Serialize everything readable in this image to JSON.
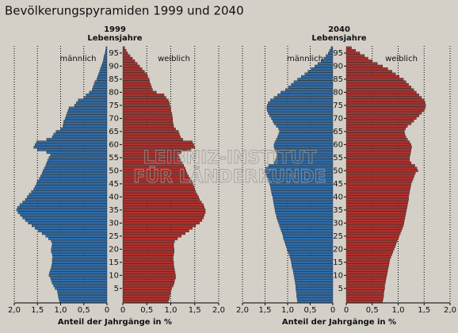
{
  "title": "Bevölkerungspyramiden 1999 und 2040",
  "watermark": [
    "LEIBNIZ-INSTITUT",
    "FÜR LÄNDERKUNDE"
  ],
  "chart_data": [
    {
      "type": "pyramid",
      "title": "1999",
      "subtitle": "Lebensjahre",
      "xlabel": "Anteil der Jahrgänge in %",
      "y": [
        0,
        1,
        2,
        3,
        4,
        5,
        6,
        7,
        8,
        9,
        10,
        11,
        12,
        13,
        14,
        15,
        16,
        17,
        18,
        19,
        20,
        21,
        22,
        23,
        24,
        25,
        26,
        27,
        28,
        29,
        30,
        31,
        32,
        33,
        34,
        35,
        36,
        37,
        38,
        39,
        40,
        41,
        42,
        43,
        44,
        45,
        46,
        47,
        48,
        49,
        50,
        51,
        52,
        53,
        54,
        55,
        56,
        57,
        58,
        59,
        60,
        61,
        62,
        63,
        64,
        65,
        66,
        67,
        68,
        69,
        70,
        71,
        72,
        73,
        74,
        75,
        76,
        77,
        78,
        79,
        80,
        81,
        82,
        83,
        84,
        85,
        86,
        87,
        88,
        89,
        90,
        91,
        92,
        93,
        94,
        95,
        96,
        97
      ],
      "ylim": [
        0,
        97
      ],
      "yticks": [
        5,
        10,
        15,
        20,
        25,
        30,
        35,
        40,
        45,
        50,
        55,
        60,
        65,
        70,
        75,
        80,
        85,
        90,
        95
      ],
      "xlim": [
        0,
        2
      ],
      "xticks": [
        0,
        {
          "value": 0.5,
          "label": "0,5"
        },
        {
          "value": 1,
          "label": "1,0"
        },
        {
          "value": 1.5,
          "label": "1,5"
        },
        {
          "value": 2,
          "label": "2,0"
        }
      ],
      "grid": true,
      "series": [
        {
          "name": "männlich",
          "color": "#2f6ca8",
          "side": "left",
          "values": [
            1.02,
            1.04,
            1.05,
            1.06,
            1.07,
            1.12,
            1.15,
            1.18,
            1.2,
            1.22,
            1.25,
            1.24,
            1.22,
            1.2,
            1.19,
            1.18,
            1.18,
            1.17,
            1.18,
            1.2,
            1.2,
            1.19,
            1.18,
            1.2,
            1.26,
            1.32,
            1.4,
            1.48,
            1.55,
            1.62,
            1.7,
            1.76,
            1.82,
            1.87,
            1.92,
            1.95,
            1.93,
            1.88,
            1.82,
            1.76,
            1.72,
            1.68,
            1.63,
            1.58,
            1.55,
            1.52,
            1.5,
            1.46,
            1.43,
            1.4,
            1.38,
            1.35,
            1.32,
            1.3,
            1.28,
            1.25,
            1.22,
            1.3,
            1.5,
            1.58,
            1.55,
            1.52,
            1.3,
            1.18,
            1.15,
            1.1,
            1.0,
            0.95,
            0.94,
            0.93,
            0.9,
            0.88,
            0.86,
            0.84,
            0.82,
            0.7,
            0.66,
            0.62,
            0.5,
            0.45,
            0.38,
            0.32,
            0.3,
            0.28,
            0.26,
            0.22,
            0.2,
            0.18,
            0.16,
            0.14,
            0.12,
            0.1,
            0.08,
            0.07,
            0.06,
            0.04,
            0.03,
            0.02
          ]
        },
        {
          "name": "weiblich",
          "color": "#b0302c",
          "side": "right",
          "values": [
            0.95,
            0.97,
            0.98,
            0.99,
            1.0,
            1.02,
            1.05,
            1.07,
            1.08,
            1.1,
            1.1,
            1.09,
            1.08,
            1.07,
            1.06,
            1.06,
            1.05,
            1.05,
            1.06,
            1.07,
            1.07,
            1.06,
            1.06,
            1.08,
            1.14,
            1.22,
            1.3,
            1.38,
            1.45,
            1.52,
            1.6,
            1.65,
            1.68,
            1.7,
            1.72,
            1.72,
            1.7,
            1.68,
            1.64,
            1.6,
            1.58,
            1.55,
            1.52,
            1.5,
            1.48,
            1.46,
            1.44,
            1.4,
            1.37,
            1.34,
            1.32,
            1.3,
            1.27,
            1.24,
            1.2,
            1.18,
            1.16,
            1.22,
            1.42,
            1.5,
            1.48,
            1.45,
            1.25,
            1.2,
            1.18,
            1.16,
            1.1,
            1.06,
            1.05,
            1.04,
            1.04,
            1.03,
            1.02,
            1.0,
            1.0,
            0.98,
            0.97,
            0.95,
            0.9,
            0.86,
            0.7,
            0.62,
            0.6,
            0.58,
            0.56,
            0.55,
            0.52,
            0.5,
            0.45,
            0.4,
            0.35,
            0.3,
            0.25,
            0.2,
            0.15,
            0.1,
            0.07,
            0.04
          ]
        }
      ]
    },
    {
      "type": "pyramid",
      "title": "2040",
      "subtitle": "Lebensjahre",
      "xlabel": "Anteil der Jahrgänge in %",
      "y": [
        0,
        1,
        2,
        3,
        4,
        5,
        6,
        7,
        8,
        9,
        10,
        11,
        12,
        13,
        14,
        15,
        16,
        17,
        18,
        19,
        20,
        21,
        22,
        23,
        24,
        25,
        26,
        27,
        28,
        29,
        30,
        31,
        32,
        33,
        34,
        35,
        36,
        37,
        38,
        39,
        40,
        41,
        42,
        43,
        44,
        45,
        46,
        47,
        48,
        49,
        50,
        51,
        52,
        53,
        54,
        55,
        56,
        57,
        58,
        59,
        60,
        61,
        62,
        63,
        64,
        65,
        66,
        67,
        68,
        69,
        70,
        71,
        72,
        73,
        74,
        75,
        76,
        77,
        78,
        79,
        80,
        81,
        82,
        83,
        84,
        85,
        86,
        87,
        88,
        89,
        90,
        91,
        92,
        93,
        94,
        95,
        96,
        97
      ],
      "ylim": [
        0,
        97
      ],
      "yticks": [
        5,
        10,
        15,
        20,
        25,
        30,
        35,
        40,
        45,
        50,
        55,
        60,
        65,
        70,
        75,
        80,
        85,
        90,
        95
      ],
      "xlim": [
        0,
        2
      ],
      "xticks": [
        0,
        {
          "value": 0.5,
          "label": "0,5"
        },
        {
          "value": 1,
          "label": "1,0"
        },
        {
          "value": 1.5,
          "label": "1,5"
        },
        {
          "value": 2,
          "label": "2,0"
        }
      ],
      "grid": true,
      "series": [
        {
          "name": "männlich",
          "color": "#2f6ca8",
          "side": "left",
          "values": [
            0.78,
            0.79,
            0.8,
            0.8,
            0.81,
            0.82,
            0.82,
            0.83,
            0.84,
            0.85,
            0.86,
            0.87,
            0.88,
            0.9,
            0.91,
            0.92,
            0.93,
            0.95,
            0.97,
            0.99,
            1.01,
            1.03,
            1.05,
            1.07,
            1.09,
            1.1,
            1.12,
            1.14,
            1.16,
            1.18,
            1.2,
            1.22,
            1.24,
            1.25,
            1.27,
            1.28,
            1.29,
            1.3,
            1.31,
            1.32,
            1.33,
            1.35,
            1.36,
            1.37,
            1.38,
            1.4,
            1.42,
            1.44,
            1.46,
            1.48,
            1.5,
            1.48,
            1.42,
            1.3,
            1.27,
            1.25,
            1.24,
            1.25,
            1.28,
            1.3,
            1.3,
            1.28,
            1.25,
            1.22,
            1.2,
            1.18,
            1.2,
            1.25,
            1.3,
            1.33,
            1.36,
            1.4,
            1.43,
            1.45,
            1.46,
            1.45,
            1.43,
            1.38,
            1.3,
            1.22,
            1.15,
            1.05,
            0.98,
            0.92,
            0.86,
            0.78,
            0.7,
            0.62,
            0.55,
            0.48,
            0.4,
            0.33,
            0.26,
            0.2,
            0.15,
            0.1,
            0.07,
            0.04
          ]
        },
        {
          "name": "weiblich",
          "color": "#b0302c",
          "side": "right",
          "values": [
            0.7,
            0.71,
            0.72,
            0.72,
            0.73,
            0.74,
            0.74,
            0.75,
            0.76,
            0.77,
            0.78,
            0.79,
            0.8,
            0.81,
            0.82,
            0.83,
            0.84,
            0.86,
            0.88,
            0.9,
            0.92,
            0.94,
            0.96,
            0.98,
            1.0,
            1.02,
            1.04,
            1.06,
            1.08,
            1.1,
            1.11,
            1.12,
            1.13,
            1.14,
            1.15,
            1.16,
            1.17,
            1.18,
            1.19,
            1.2,
            1.2,
            1.21,
            1.22,
            1.23,
            1.24,
            1.25,
            1.27,
            1.29,
            1.31,
            1.33,
            1.38,
            1.36,
            1.32,
            1.25,
            1.22,
            1.22,
            1.23,
            1.24,
            1.25,
            1.26,
            1.25,
            1.22,
            1.18,
            1.15,
            1.13,
            1.12,
            1.14,
            1.18,
            1.25,
            1.3,
            1.35,
            1.4,
            1.45,
            1.5,
            1.52,
            1.53,
            1.52,
            1.5,
            1.45,
            1.4,
            1.35,
            1.3,
            1.25,
            1.2,
            1.15,
            1.1,
            1.02,
            0.95,
            0.88,
            0.8,
            0.7,
            0.6,
            0.5,
            0.42,
            0.35,
            0.26,
            0.18,
            0.1
          ]
        }
      ]
    }
  ]
}
